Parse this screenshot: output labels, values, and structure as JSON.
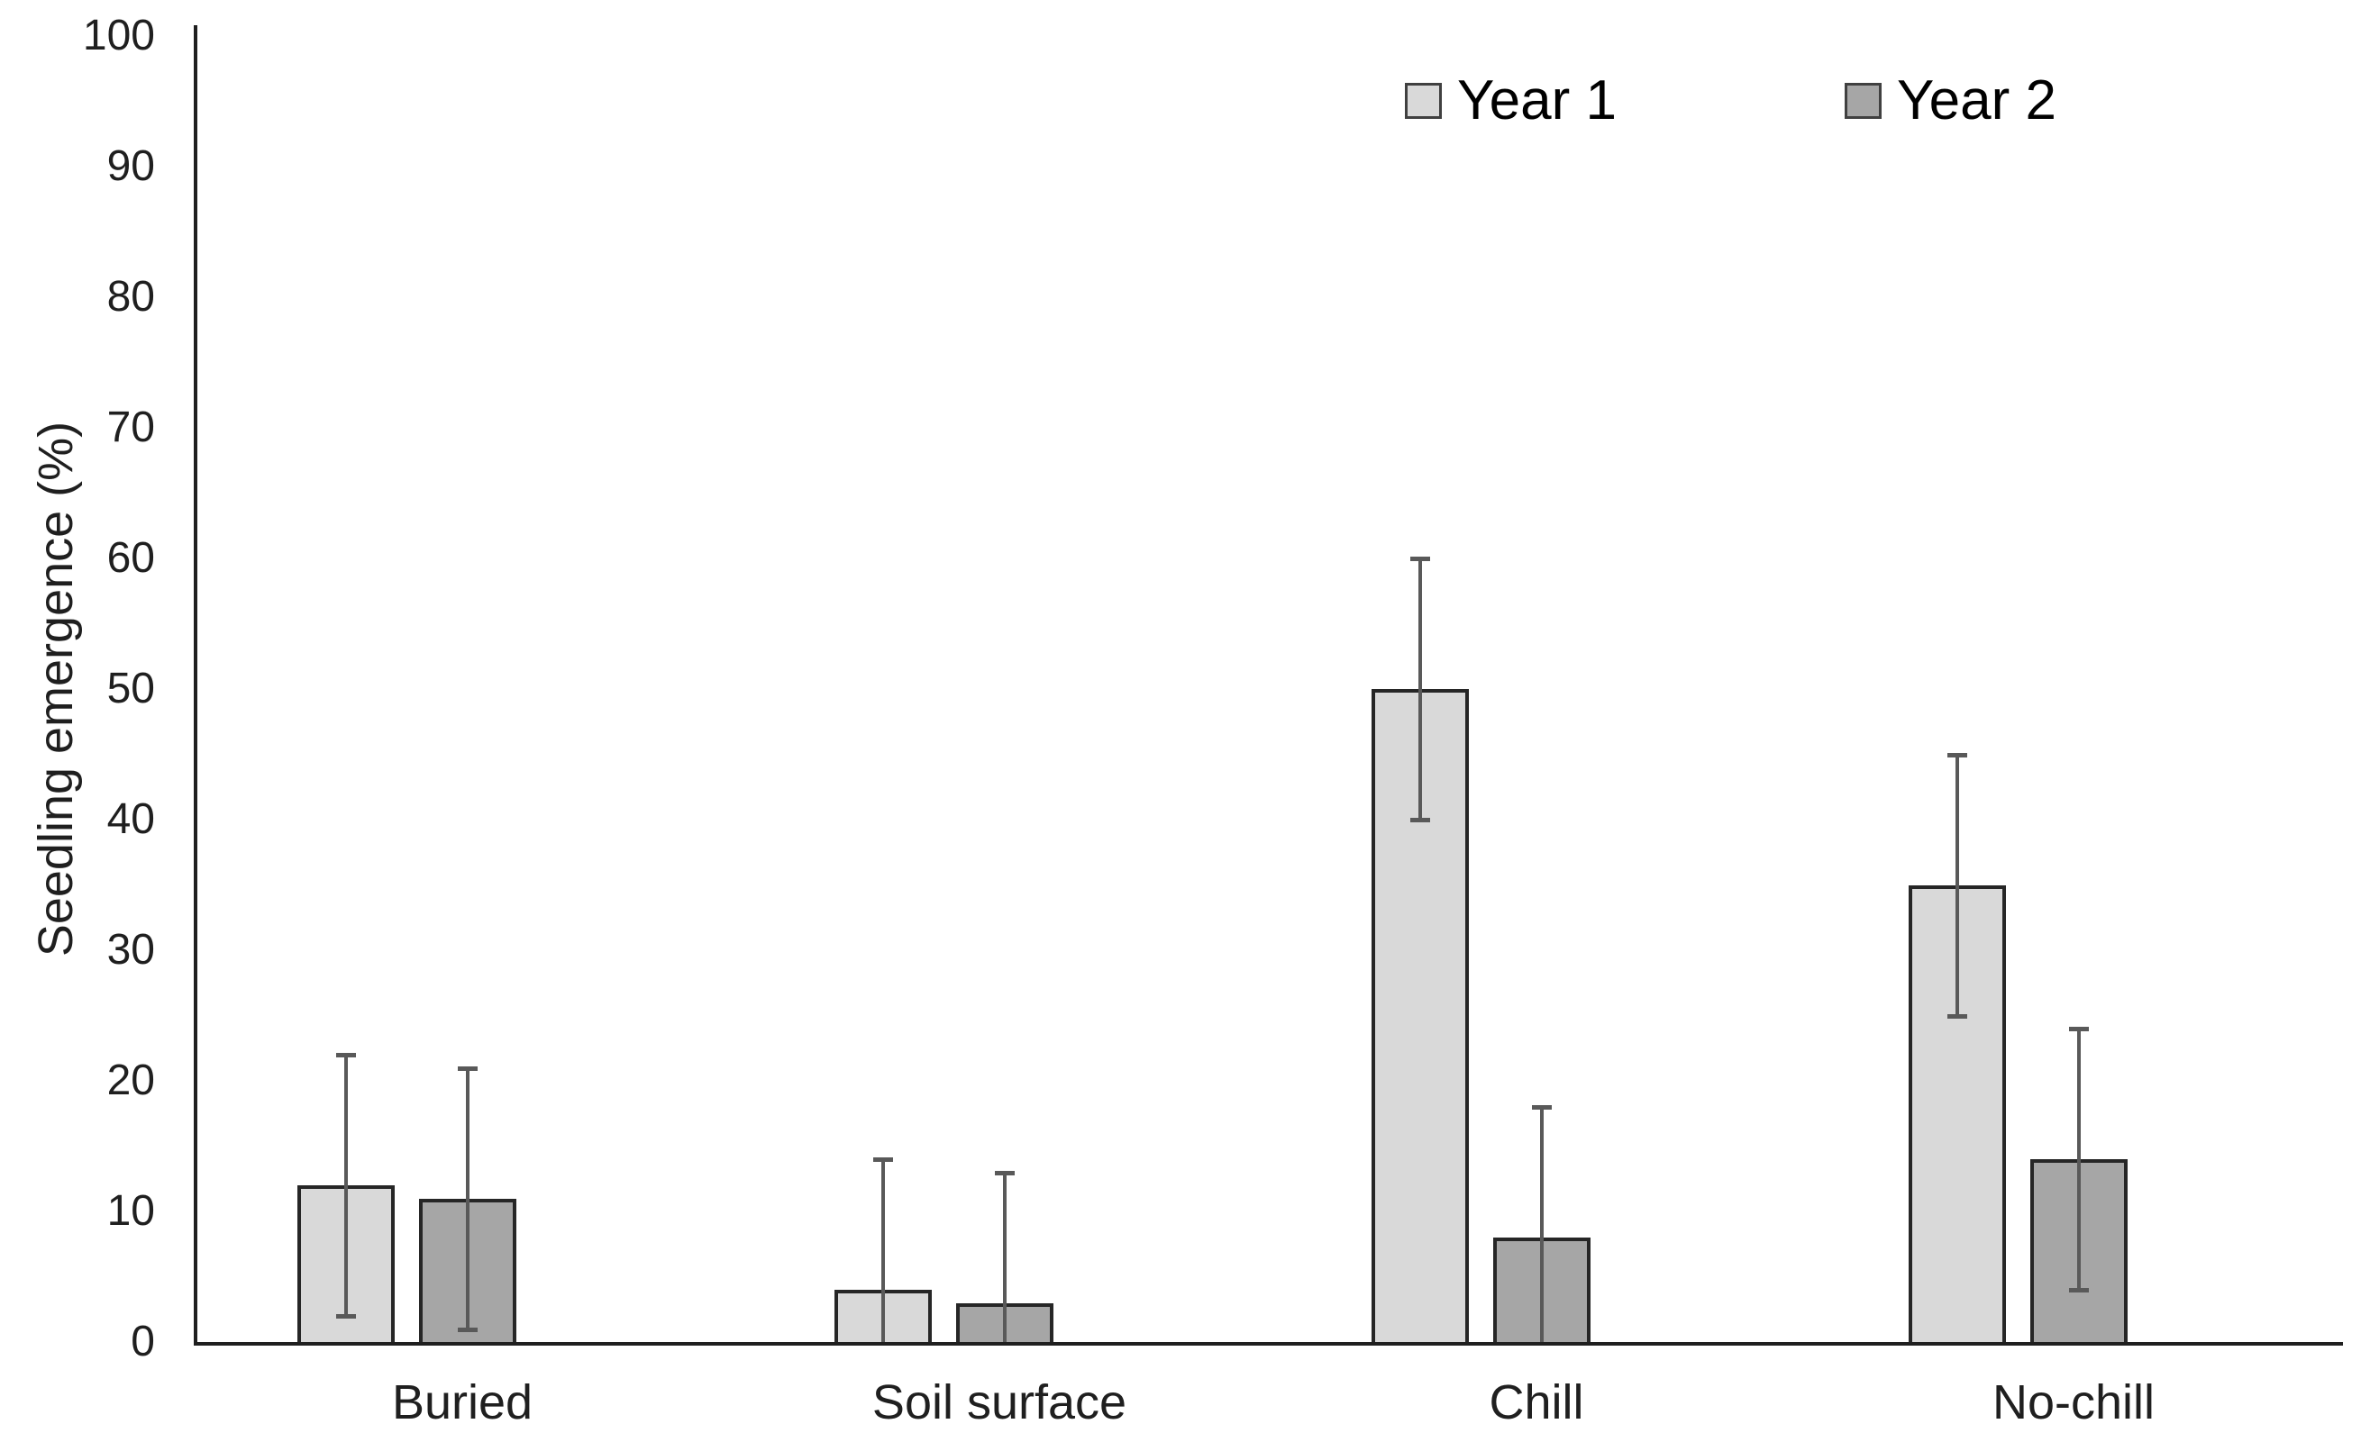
{
  "chart_data": {
    "type": "bar",
    "title": "",
    "categories": [
      "Buried",
      "Soil surface",
      "Chill",
      "No-chill"
    ],
    "series": [
      {
        "name": "Year 1",
        "fill": "#d9d9d9",
        "values": [
          12,
          4,
          50,
          35
        ],
        "error_upper": [
          22,
          14,
          60,
          45
        ],
        "error_lower": [
          2,
          0,
          40,
          25
        ],
        "error_lower_cap_visible": [
          true,
          false,
          true,
          true
        ]
      },
      {
        "name": "Year 2",
        "fill": "#a6a6a6",
        "values": [
          11,
          3,
          8,
          14
        ],
        "error_upper": [
          21,
          13,
          18,
          24
        ],
        "error_lower": [
          1,
          0,
          0,
          4
        ],
        "error_lower_cap_visible": [
          true,
          false,
          false,
          true
        ]
      }
    ],
    "xlabel": "",
    "ylabel": "Seedling emergence (%)",
    "ylim": [
      0,
      100
    ],
    "ytick_step": 10,
    "ytick_labels": [
      "0",
      "10",
      "20",
      "30",
      "40",
      "50",
      "60",
      "70",
      "80",
      "90",
      "100"
    ],
    "grid": false,
    "legend_position": "top-right",
    "colors": {
      "background": "#ffffff",
      "bar_border": "#262626",
      "error_bar": "#595959",
      "axis": "#1f1f1f",
      "text": "#1f1f1f"
    }
  }
}
